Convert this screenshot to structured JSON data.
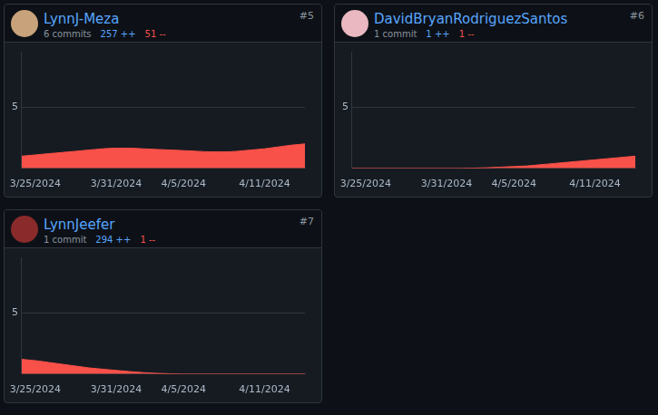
{
  "chart_data": [
    {
      "type": "area",
      "title": "LynnJ-Meza",
      "subtitle": "6 commits",
      "annotations": [
        "257 ++",
        "51 --",
        "#5"
      ],
      "categories": [
        null,
        "3/25/2024",
        null,
        null,
        null,
        null,
        null,
        "3/31/2024",
        null,
        null,
        null,
        null,
        "4/5/2024",
        null,
        null,
        null,
        null,
        null,
        "4/11/2024",
        null,
        null,
        null
      ],
      "values": [
        1.0,
        1.1,
        1.2,
        1.3,
        1.4,
        1.5,
        1.6,
        1.65,
        1.65,
        1.6,
        1.55,
        1.5,
        1.45,
        1.4,
        1.35,
        1.35,
        1.4,
        1.5,
        1.6,
        1.75,
        1.9,
        2.0
      ],
      "color": "#f85149",
      "ylim": [
        0,
        9.5
      ],
      "yticks": [
        5
      ],
      "grid": true
    },
    {
      "type": "area",
      "title": "DavidBryanRodriguezSantos",
      "subtitle": "1 commit",
      "annotations": [
        "1 ++",
        "1 --",
        "#6"
      ],
      "categories": [
        null,
        "3/25/2024",
        null,
        null,
        null,
        null,
        null,
        "3/31/2024",
        null,
        null,
        null,
        null,
        "4/5/2024",
        null,
        null,
        null,
        null,
        null,
        "4/11/2024",
        null,
        null,
        null
      ],
      "values": [
        0,
        0,
        0,
        0,
        0,
        0,
        0,
        0,
        0,
        0.02,
        0.05,
        0.1,
        0.15,
        0.2,
        0.3,
        0.4,
        0.5,
        0.6,
        0.7,
        0.8,
        0.9,
        1.0
      ],
      "color": "#f85149",
      "ylim": [
        0,
        9.5
      ],
      "yticks": [
        5
      ],
      "grid": true
    },
    {
      "type": "area",
      "title": "LynnJeefer",
      "subtitle": "1 commit",
      "annotations": [
        "294 ++",
        "1 --",
        "#7"
      ],
      "categories": [
        null,
        "3/25/2024",
        null,
        null,
        null,
        null,
        null,
        "3/31/2024",
        null,
        null,
        null,
        null,
        "4/5/2024",
        null,
        null,
        null,
        null,
        null,
        "4/11/2024",
        null,
        null,
        null
      ],
      "values": [
        1.2,
        1.1,
        0.95,
        0.8,
        0.65,
        0.5,
        0.4,
        0.3,
        0.2,
        0.12,
        0.06,
        0.02,
        0,
        0,
        0,
        0,
        0,
        0,
        0,
        0,
        0,
        0
      ],
      "color": "#f85149",
      "ylim": [
        0,
        9.5
      ],
      "yticks": [
        5
      ],
      "grid": true
    }
  ]
}
